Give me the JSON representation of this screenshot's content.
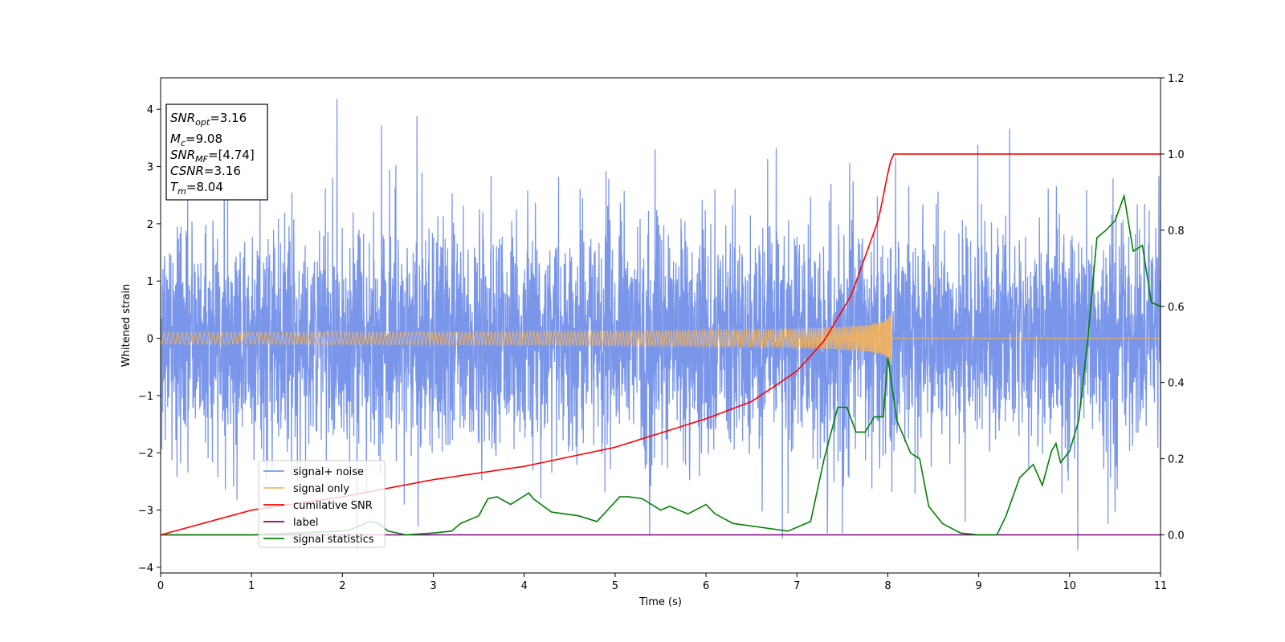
{
  "chart_data": {
    "type": "line",
    "title": "",
    "xlabel": "Time (s)",
    "ylabel": "Whitened strain",
    "y2label": "",
    "xlim": [
      0,
      11
    ],
    "ylim": [
      -4.1,
      4.55
    ],
    "y2lim": [
      -0.1,
      1.2
    ],
    "xticks": [
      "0",
      "1",
      "2",
      "3",
      "4",
      "5",
      "6",
      "7",
      "8",
      "9",
      "10",
      "11"
    ],
    "yticks": [
      "4",
      "3",
      "2",
      "1",
      "0",
      "−1",
      "−2",
      "−3",
      "−4"
    ],
    "y2ticks": [
      "1.2",
      "1.0",
      "0.8",
      "0.6",
      "0.4",
      "0.2",
      "0.0"
    ],
    "grid": false,
    "legend_position": "lower-left",
    "annotation": {
      "snr_opt": {
        "base": "SNR",
        "sub": "opt",
        "value": "=3.16"
      },
      "mc": {
        "base": "M",
        "sub": "c",
        "value": "=9.08"
      },
      "snr_mf": {
        "base": "SNR",
        "sub": "MF",
        "value": "=[4.74]"
      },
      "csnr": {
        "base": "CSNR",
        "sub": "",
        "value": "=3.16"
      },
      "tm": {
        "base": "T",
        "sub": "m",
        "value": "=8.04"
      }
    },
    "series": [
      {
        "name": "signal+ noise",
        "axis": "left",
        "color": "#4169e1",
        "kind": "noise",
        "x_range": [
          0,
          11
        ],
        "approx_sigma": 1.0,
        "approx_range": [
          -3.7,
          4.2
        ],
        "notable_peaks": [
          [
            1.94,
            4.18
          ],
          [
            2.82,
            3.88
          ],
          [
            2.43,
            3.72
          ],
          [
            9.34,
            3.66
          ],
          [
            8.99,
            3.38
          ],
          [
            5.44,
            3.3
          ],
          [
            10.09,
            -3.7
          ],
          [
            2.16,
            -3.67
          ],
          [
            5.38,
            -3.45
          ],
          [
            6.84,
            -3.5
          ]
        ]
      },
      {
        "name": "signal only",
        "axis": "left",
        "color": "#f5b45a",
        "kind": "chirp",
        "x_range": [
          0,
          11
        ],
        "merger_time": 8.04,
        "peak_amplitude": 0.52
      },
      {
        "name": "cumilative SNR",
        "axis": "right",
        "color": "#ff0000",
        "x": [
          0,
          1,
          2,
          3,
          4,
          5,
          6,
          6.5,
          7,
          7.3,
          7.6,
          7.9,
          8.0,
          8.04,
          8.05,
          11
        ],
        "y": [
          0.0,
          0.065,
          0.1,
          0.145,
          0.18,
          0.23,
          0.305,
          0.35,
          0.43,
          0.51,
          0.63,
          0.83,
          0.95,
          0.99,
          1.0,
          1.0
        ]
      },
      {
        "name": "label",
        "axis": "right",
        "color": "#800080",
        "x": [
          0,
          11
        ],
        "y": [
          0.0,
          0.0
        ]
      },
      {
        "name": "signal statistics",
        "axis": "right",
        "color": "#008000",
        "x": [
          0,
          0.5,
          1,
          1.5,
          2,
          2.1,
          2.2,
          2.3,
          2.4,
          2.5,
          2.7,
          3,
          3.2,
          3.3,
          3.5,
          3.6,
          3.7,
          3.85,
          3.95,
          4.05,
          4.1,
          4.3,
          4.6,
          4.8,
          5.05,
          5.15,
          5.3,
          5.5,
          5.6,
          5.8,
          6.0,
          6.1,
          6.3,
          6.6,
          6.9,
          7.15,
          7.3,
          7.45,
          7.55,
          7.65,
          7.75,
          7.85,
          7.95,
          8.0,
          8.1,
          8.25,
          8.35,
          8.45,
          8.6,
          8.8,
          9.0,
          9.2,
          9.3,
          9.45,
          9.6,
          9.7,
          9.8,
          9.85,
          9.9,
          10.0,
          10.1,
          10.2,
          10.3,
          10.4,
          10.5,
          10.6,
          10.7,
          10.8,
          10.9,
          11.0
        ],
        "y": [
          0.0,
          0.0,
          0.0,
          0.005,
          0.01,
          0.015,
          0.025,
          0.035,
          0.03,
          0.01,
          0.0,
          0.005,
          0.01,
          0.03,
          0.05,
          0.095,
          0.1,
          0.08,
          0.095,
          0.11,
          0.095,
          0.06,
          0.05,
          0.035,
          0.1,
          0.1,
          0.095,
          0.065,
          0.075,
          0.055,
          0.08,
          0.055,
          0.03,
          0.02,
          0.01,
          0.035,
          0.2,
          0.335,
          0.335,
          0.27,
          0.27,
          0.31,
          0.31,
          0.465,
          0.3,
          0.215,
          0.2,
          0.075,
          0.03,
          0.005,
          0.0,
          0.0,
          0.05,
          0.15,
          0.185,
          0.13,
          0.22,
          0.24,
          0.19,
          0.22,
          0.3,
          0.515,
          0.78,
          0.8,
          0.825,
          0.89,
          0.745,
          0.76,
          0.61,
          0.6
        ]
      }
    ]
  }
}
